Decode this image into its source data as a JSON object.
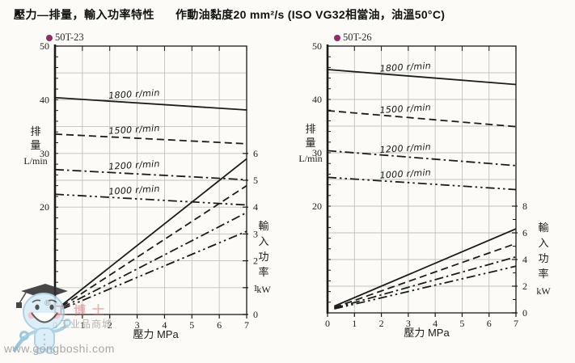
{
  "page": {
    "title_bold": "壓力—排量，輸入功率特性",
    "title_conditions": "作動油黏度20 mm²/s (ISO VG32相當油，油溫50°C)"
  },
  "colors": {
    "accent_dot": "#8f2d64",
    "curve": "#1c1c1c",
    "grid": "#bfc3ba",
    "axis": "#1a1a1a"
  },
  "watermark": {
    "site": "www.gongboshi.com",
    "shop": "工业品商城",
    "brand": "工博士",
    "registered": "®"
  },
  "chart_data": [
    {
      "type": "line",
      "model": "50T-23",
      "xlabel": "壓力 MPa",
      "xlim": [
        0,
        7
      ],
      "x_ticks": [
        0,
        1,
        2,
        3,
        4,
        5,
        6,
        7
      ],
      "grid": true,
      "flow_axis": {
        "label": "排量",
        "unit": "L/min",
        "lim": [
          0,
          50
        ],
        "tick_labels": [
          20,
          30,
          40,
          50
        ],
        "grid_step": 5
      },
      "power_axis": {
        "label": "輸入功率",
        "unit": "kW",
        "tick_labels": [
          0,
          1,
          2,
          3,
          4,
          5,
          6
        ],
        "minor_ticks": [],
        "kw_per_grid": 1
      },
      "series": [
        {
          "name": "1800 r/min",
          "dash": "solid",
          "flow": {
            "x": [
              0,
              7
            ],
            "y": [
              40.4,
              38.1
            ]
          },
          "power": {
            "x": [
              0.25,
              7
            ],
            "y": [
              0.35,
              5.8
            ]
          }
        },
        {
          "name": "1500 r/min",
          "dash": "dashed",
          "flow": {
            "x": [
              0,
              7
            ],
            "y": [
              33.6,
              31.8
            ]
          },
          "power": {
            "x": [
              0.25,
              7
            ],
            "y": [
              0.3,
              4.8
            ]
          }
        },
        {
          "name": "1200 r/min",
          "dash": "dashdot",
          "flow": {
            "x": [
              0,
              7
            ],
            "y": [
              27.0,
              25.1
            ]
          },
          "power": {
            "x": [
              0.25,
              7
            ],
            "y": [
              0.25,
              3.8
            ]
          }
        },
        {
          "name": "1000 r/min",
          "dash": "dashdotdot",
          "flow": {
            "x": [
              0,
              7
            ],
            "y": [
              22.4,
              20.4
            ]
          },
          "power": {
            "x": [
              0.25,
              7
            ],
            "y": [
              0.2,
              3.1
            ]
          }
        }
      ]
    },
    {
      "type": "line",
      "model": "50T-26",
      "xlabel": "壓力 MPa",
      "xlim": [
        0,
        7
      ],
      "x_ticks": [
        0,
        1,
        2,
        3,
        4,
        5,
        6,
        7
      ],
      "grid": true,
      "flow_axis": {
        "label": "排量",
        "unit": "L/min",
        "lim": [
          0,
          50
        ],
        "tick_labels": [
          20,
          30,
          40,
          50
        ],
        "grid_step": 5
      },
      "power_axis": {
        "label": "輸入功率",
        "unit": "kW",
        "tick_labels": [
          0,
          2,
          4,
          6,
          8
        ],
        "minor_ticks": [
          1,
          3,
          5,
          7
        ],
        "kw_per_grid": 2
      },
      "series": [
        {
          "name": "1800 r/min",
          "dash": "solid",
          "flow": {
            "x": [
              0,
              7
            ],
            "y": [
              45.6,
              42.8
            ]
          },
          "power": {
            "x": [
              0.25,
              7
            ],
            "y": [
              0.5,
              6.3
            ]
          }
        },
        {
          "name": "1500 r/min",
          "dash": "dashed",
          "flow": {
            "x": [
              0,
              7
            ],
            "y": [
              37.9,
              34.9
            ]
          },
          "power": {
            "x": [
              0.25,
              7
            ],
            "y": [
              0.4,
              5.2
            ]
          }
        },
        {
          "name": "1200 r/min",
          "dash": "dashdot",
          "flow": {
            "x": [
              0,
              7
            ],
            "y": [
              30.4,
              27.6
            ]
          },
          "power": {
            "x": [
              0.25,
              7
            ],
            "y": [
              0.35,
              4.2
            ]
          }
        },
        {
          "name": "1000 r/min",
          "dash": "dashdotdot",
          "flow": {
            "x": [
              0,
              7
            ],
            "y": [
              25.4,
              23.1
            ]
          },
          "power": {
            "x": [
              0.25,
              7
            ],
            "y": [
              0.3,
              3.5
            ]
          }
        }
      ]
    }
  ]
}
